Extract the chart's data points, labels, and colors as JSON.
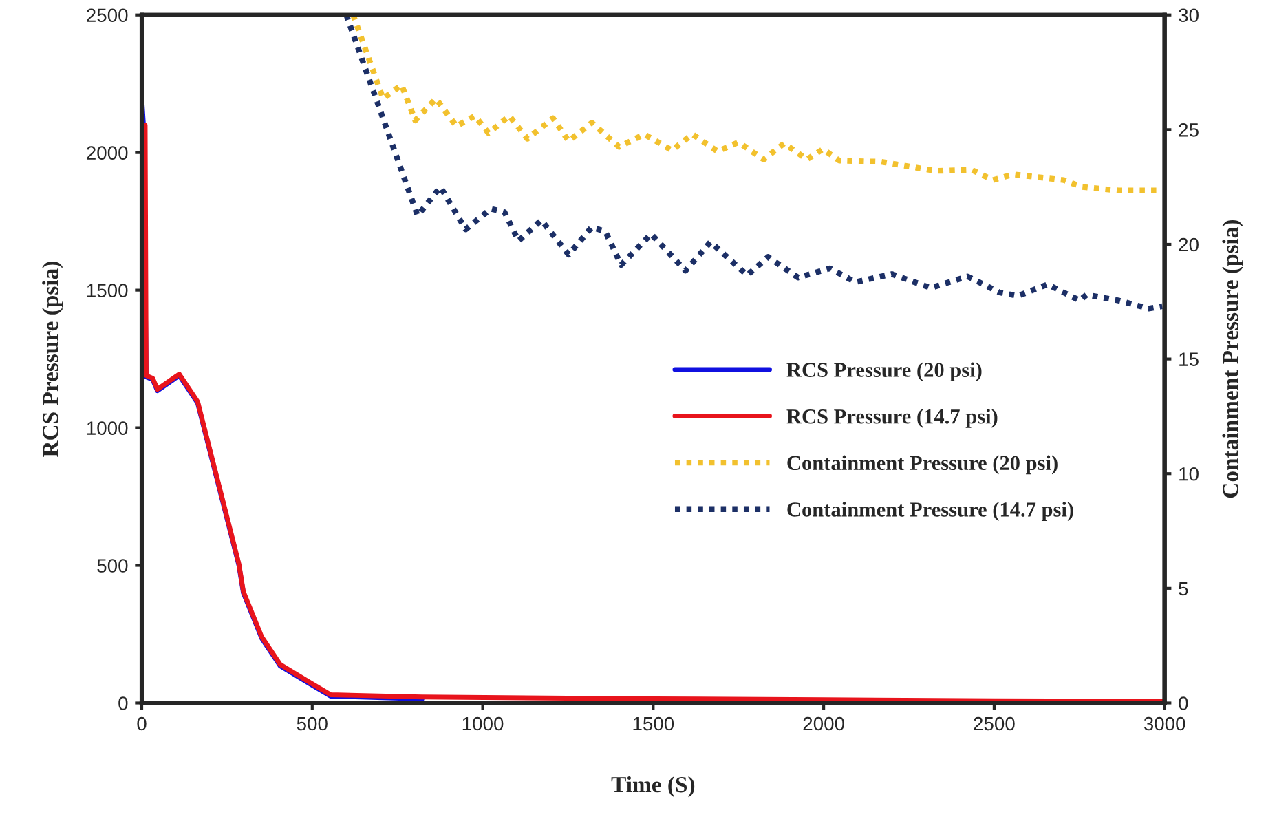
{
  "chart_data": {
    "type": "line",
    "xlabel": "Time (S)",
    "ylabel": "RCS Pressure (psia)",
    "y2label": "Containment Pressure (psia)",
    "xlim": [
      0,
      3000
    ],
    "xticks": [
      0,
      500,
      1000,
      1500,
      2000,
      2500,
      3000
    ],
    "ylim": [
      0,
      2500
    ],
    "yticks": [
      0,
      500,
      1000,
      1500,
      2000,
      2500
    ],
    "y2lim": [
      0,
      30
    ],
    "y2ticks": [
      0,
      5,
      10,
      15,
      20,
      25,
      30
    ],
    "grid": false,
    "legend": "right",
    "series": [
      {
        "name": "RCS Pressure (20 psi)",
        "color": "#1010e0",
        "line_style": "solid",
        "x": [
          0,
          5,
          13,
          32,
          46,
          110,
          164,
          285,
          298,
          352,
          406,
          486,
          554,
          822
        ],
        "values": [
          2195,
          2100,
          1185,
          1175,
          1135,
          1190,
          1090,
          500,
          400,
          235,
          135,
          75,
          25,
          15
        ]
      },
      {
        "name": "RCS Pressure (14.7 psi)",
        "color": "#e8141c",
        "line_style": "solid",
        "x": [
          5,
          10,
          13,
          32,
          46,
          110,
          164,
          285,
          298,
          352,
          406,
          486,
          554,
          822,
          1500,
          2000,
          2500,
          3000
        ],
        "values": [
          2090,
          2100,
          1190,
          1180,
          1140,
          1195,
          1095,
          505,
          405,
          240,
          140,
          80,
          30,
          22,
          15,
          12,
          8,
          6
        ]
      },
      {
        "name": "Containment Pressure (20 psi)",
        "color": "#f2c12e",
        "line_style": "dotted",
        "axis": "y2",
        "x": [
          620,
          708,
          762,
          802,
          863,
          923,
          977,
          1017,
          1078,
          1131,
          1206,
          1252,
          1320,
          1400,
          1474,
          1555,
          1615,
          1689,
          1750,
          1824,
          1884,
          1951,
          1998,
          2046,
          2167,
          2328,
          2434,
          2496,
          2556,
          2704,
          2758,
          2865,
          2993
        ],
        "values": [
          30,
          26.35,
          26.95,
          25.4,
          26.35,
          25.15,
          25.6,
          24.85,
          25.6,
          24.6,
          25.5,
          24.5,
          25.3,
          24.25,
          24.8,
          24.1,
          24.8,
          24.05,
          24.45,
          23.7,
          24.4,
          23.7,
          24.15,
          23.65,
          23.6,
          23.2,
          23.25,
          22.8,
          23.05,
          22.8,
          22.5,
          22.35,
          22.35
        ]
      },
      {
        "name": "Containment Pressure (14.7 psi)",
        "color": "#1c2f66",
        "line_style": "dotted",
        "axis": "y2",
        "x": [
          600,
          809,
          876,
          950,
          1024,
          1064,
          1105,
          1172,
          1252,
          1320,
          1360,
          1406,
          1494,
          1595,
          1668,
          1776,
          1837,
          1925,
          2018,
          2093,
          2200,
          2314,
          2422,
          2516,
          2570,
          2657,
          2751,
          2771,
          2865,
          2953,
          2993
        ],
        "values": [
          30,
          21.25,
          22.5,
          20.65,
          21.55,
          21.4,
          20.15,
          21.05,
          19.55,
          20.75,
          20.55,
          19.1,
          20.45,
          18.85,
          20.1,
          18.65,
          19.45,
          18.55,
          18.95,
          18.35,
          18.7,
          18.1,
          18.6,
          17.9,
          17.75,
          18.25,
          17.55,
          17.8,
          17.55,
          17.2,
          17.3
        ]
      }
    ]
  }
}
